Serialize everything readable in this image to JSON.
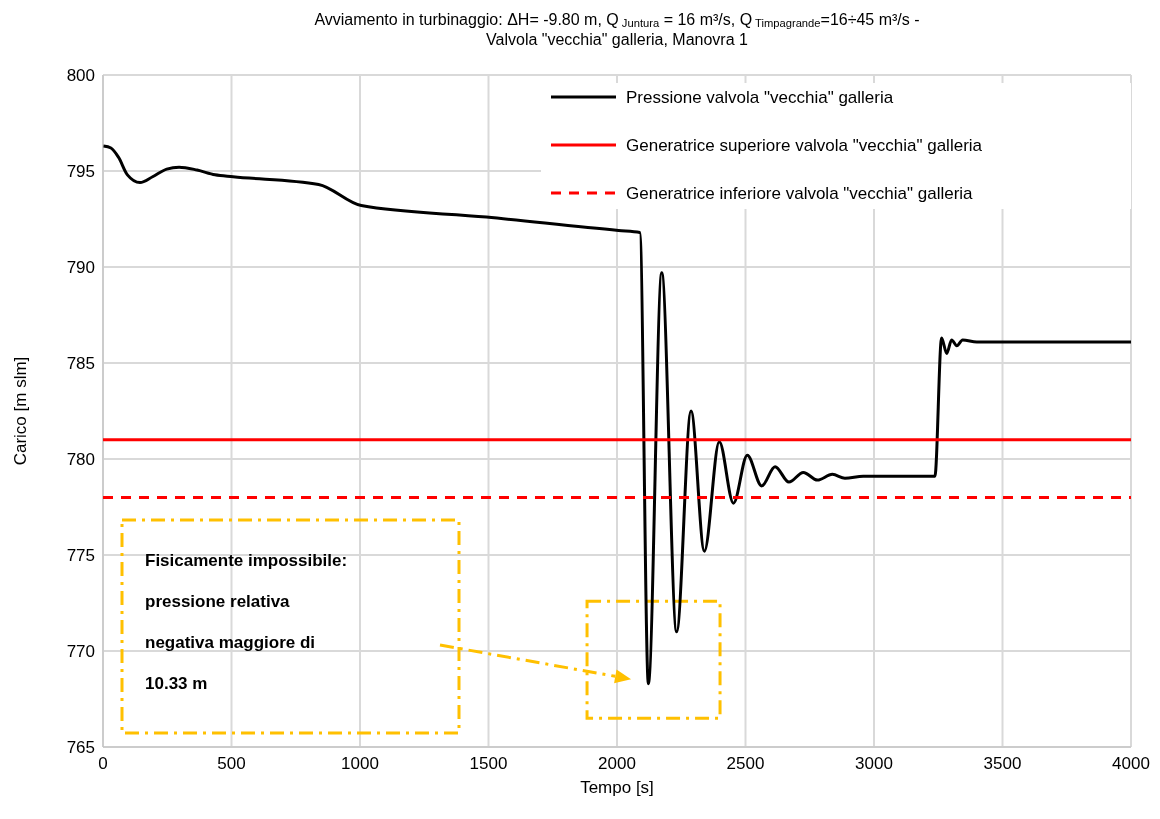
{
  "chart_data": {
    "type": "line",
    "title": "Avviamento in turbinaggio: ΔH= -9.80 m, Q $_{Juntura}$ = 16 m³/s, Q $_{Timpagrande}$=16÷45 m³/s - Valvola \"vecchia\" galleria, Manovra 1",
    "xlabel": "Tempo [s]",
    "ylabel": "Carico [m slm]",
    "xlim": [
      0,
      4000
    ],
    "xticks": [
      0,
      500,
      1000,
      1500,
      2000,
      2500,
      3000,
      3500,
      4000
    ],
    "ylim": [
      765,
      800
    ],
    "yticks": [
      765,
      770,
      775,
      780,
      785,
      790,
      795,
      800
    ],
    "grid": true,
    "legend": "top right",
    "marker": "none",
    "series": [
      {
        "name": "Pressione valvola \"vecchia\" galleria",
        "color": "#000000",
        "line_style": "solid",
        "x": [
          2,
          31,
          61,
          95,
          144,
          193,
          248,
          296,
          366,
          436,
          506,
          839,
          1005,
          1492,
          2006,
          2089,
          2122,
          2174,
          2232,
          2288,
          2340,
          2398,
          2453,
          2507,
          2563,
          2615,
          2669,
          2725,
          2780,
          2838,
          2887,
          2958,
          3049,
          3237,
          3263,
          3283,
          3302,
          3322,
          3345,
          3400,
          4000
        ],
        "values": [
          796.3,
          796.2,
          795.7,
          794.8,
          794.4,
          794.7,
          795.1,
          795.2,
          795.05,
          794.8,
          794.7,
          794.3,
          793.2,
          792.6,
          791.9,
          791.8,
          768.3,
          789.7,
          771.0,
          782.5,
          775.2,
          780.9,
          777.7,
          780.2,
          778.6,
          779.6,
          778.8,
          779.3,
          778.9,
          779.2,
          779.0,
          779.1,
          779.1,
          779.1,
          786.3,
          785.5,
          786.2,
          785.9,
          786.2,
          786.1,
          786.1
        ]
      },
      {
        "name": "Generatrice superiore valvola \"vecchia\" galleria",
        "color": "#ff0000",
        "line_style": "solid",
        "x": [
          0,
          4000
        ],
        "values": [
          781.0,
          781.0
        ]
      },
      {
        "name": "Generatrice inferiore valvola \"vecchia\" galleria",
        "color": "#ff0000",
        "line_style": "dashed",
        "x": [
          0,
          4000
        ],
        "values": [
          778.0,
          778.0
        ]
      }
    ],
    "annotations": [
      "Fisicamente impossibile: pressione relativa negativa maggiore di 10.33 m"
    ]
  }
}
